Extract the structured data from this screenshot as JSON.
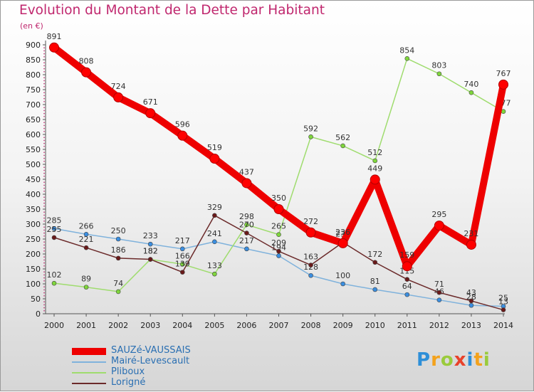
{
  "title": "Evolution du Montant de la Dette par Habitant",
  "unit": "(en €)",
  "logo": {
    "text": "Proxiti",
    "colors": [
      "#2e8fd8",
      "#f3a21c",
      "#9acb3c",
      "#e8422b",
      "#2e8fd8",
      "#f3a21c",
      "#9acb3c"
    ]
  },
  "legend_placement": "bottom-left",
  "chart_data": {
    "type": "line",
    "xlabel": "",
    "ylabel": "",
    "ylim": [
      0,
      900
    ],
    "y_ticks": [
      0,
      50,
      100,
      150,
      200,
      250,
      300,
      350,
      400,
      450,
      500,
      550,
      600,
      650,
      700,
      750,
      800,
      850,
      900
    ],
    "grid": false,
    "x": [
      "2000",
      "2001",
      "2002",
      "2003",
      "2004",
      "2005",
      "2006",
      "2007",
      "2008",
      "2009",
      "2010",
      "2011",
      "2012",
      "2013",
      "2014"
    ],
    "series": [
      {
        "name": "SAUZé-VAUSSAIS",
        "color": "#ee0000",
        "marker_color": "#ff0000",
        "emphasis": true,
        "values": [
          891,
          808,
          724,
          671,
          596,
          519,
          437,
          350,
          272,
          236,
          449,
          159,
          295,
          231,
          767
        ]
      },
      {
        "name": "Mairé-Levescault",
        "color": "#7fb2dc",
        "marker_color": "#3a8ee0",
        "emphasis": false,
        "values": [
          285,
          266,
          250,
          233,
          217,
          241,
          217,
          194,
          128,
          100,
          81,
          64,
          46,
          28,
          25
        ]
      },
      {
        "name": "Pliboux",
        "color": "#9fdc6e",
        "marker_color": "#7fd63c",
        "emphasis": false,
        "values": [
          102,
          89,
          74,
          182,
          166,
          133,
          298,
          265,
          592,
          562,
          512,
          854,
          803,
          740,
          677
        ]
      },
      {
        "name": "Lorigné",
        "color": "#6b2a2a",
        "marker_color": "#6a1a1a",
        "emphasis": false,
        "values": [
          255,
          221,
          186,
          182,
          139,
          329,
          270,
          209,
          163,
          239,
          172,
          115,
          71,
          43,
          13
        ]
      }
    ]
  }
}
